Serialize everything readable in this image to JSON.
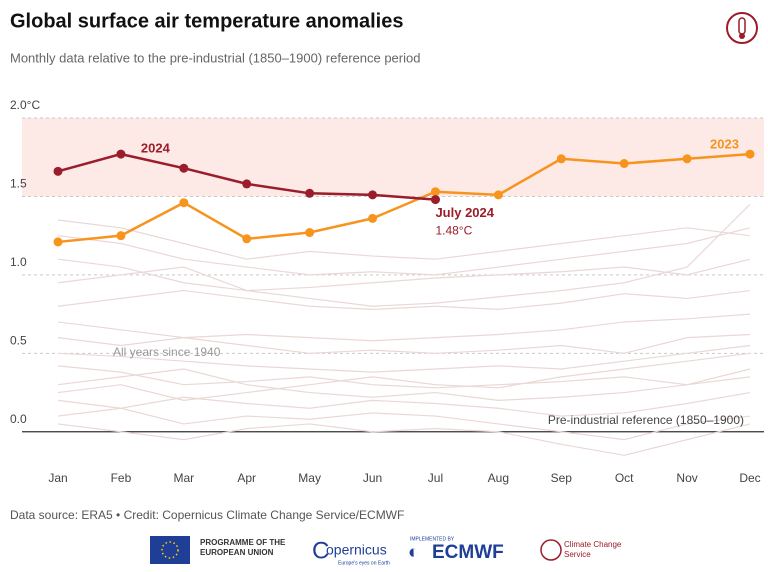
{
  "chart_data": {
    "type": "line",
    "title": "Global surface air temperature anomalies",
    "subtitle": "Monthly data relative to the pre-industrial (1850–1900) reference period",
    "categories": [
      "Jan",
      "Feb",
      "Mar",
      "Apr",
      "May",
      "Jun",
      "Jul",
      "Aug",
      "Sep",
      "Oct",
      "Nov",
      "Dec"
    ],
    "series": [
      {
        "name": "2023",
        "color": "#f7941d",
        "values": [
          1.21,
          1.25,
          1.46,
          1.23,
          1.27,
          1.36,
          1.53,
          1.51,
          1.74,
          1.71,
          1.74,
          1.77
        ]
      },
      {
        "name": "2024",
        "color": "#9b1c2a",
        "values": [
          1.66,
          1.77,
          1.68,
          1.58,
          1.52,
          1.51,
          1.48,
          null,
          null,
          null,
          null,
          null
        ]
      }
    ],
    "background_label": "All years since 1940",
    "background_color": "#e9d8d6",
    "background_lines": [
      [
        1.25,
        1.2,
        1.1,
        1.05,
        1.0,
        1.02,
        1.0,
        1.05,
        1.1,
        1.15,
        1.2,
        1.3
      ],
      [
        1.1,
        1.05,
        0.95,
        0.9,
        0.92,
        0.95,
        0.98,
        1.0,
        1.02,
        1.05,
        1.0,
        1.1
      ],
      [
        0.95,
        1.0,
        1.05,
        0.9,
        0.85,
        0.8,
        0.82,
        0.86,
        0.9,
        0.95,
        1.05,
        1.45
      ],
      [
        0.8,
        0.85,
        0.9,
        0.85,
        0.8,
        0.78,
        0.8,
        0.78,
        0.82,
        0.88,
        0.85,
        0.9
      ],
      [
        0.7,
        0.65,
        0.6,
        0.62,
        0.6,
        0.58,
        0.6,
        0.62,
        0.65,
        0.7,
        0.72,
        0.75
      ],
      [
        0.6,
        0.55,
        0.6,
        0.55,
        0.5,
        0.52,
        0.5,
        0.52,
        0.55,
        0.5,
        0.6,
        0.62
      ],
      [
        0.5,
        0.48,
        0.45,
        0.42,
        0.4,
        0.38,
        0.4,
        0.42,
        0.4,
        0.45,
        0.5,
        0.55
      ],
      [
        0.42,
        0.38,
        0.3,
        0.32,
        0.35,
        0.3,
        0.28,
        0.3,
        0.32,
        0.35,
        0.3,
        0.4
      ],
      [
        0.3,
        0.35,
        0.4,
        0.3,
        0.25,
        0.22,
        0.25,
        0.2,
        0.22,
        0.25,
        0.3,
        0.35
      ],
      [
        0.2,
        0.15,
        0.22,
        0.18,
        0.15,
        0.2,
        0.18,
        0.15,
        0.1,
        0.12,
        0.18,
        0.25
      ],
      [
        0.1,
        0.15,
        0.05,
        0.1,
        0.08,
        0.12,
        0.1,
        0.05,
        0.0,
        -0.05,
        0.05,
        0.1
      ],
      [
        0.05,
        0.0,
        -0.05,
        0.02,
        0.05,
        0.0,
        0.02,
        0.0,
        -0.08,
        -0.15,
        -0.05,
        0.05
      ],
      [
        0.25,
        0.3,
        0.2,
        0.25,
        0.3,
        0.35,
        0.3,
        0.28,
        0.35,
        0.4,
        0.45,
        0.5
      ],
      [
        1.35,
        1.3,
        1.2,
        1.1,
        1.15,
        1.12,
        1.1,
        1.15,
        1.2,
        1.25,
        1.3,
        1.25
      ]
    ],
    "band": [
      1.5,
      2.0
    ],
    "band_color": "#fde9e6",
    "ylim": [
      -0.18,
      2.0
    ],
    "yticks": [
      {
        "value": 0,
        "label": "0.0"
      },
      0.5,
      {
        "value": 1,
        "label": "1.0"
      },
      1.5,
      {
        "value": 2,
        "label": "2.0°C"
      }
    ],
    "reference_label": "Pre-industrial reference (1850–1900)",
    "annotations": [
      "July 2024",
      "1.48°C"
    ],
    "source": "Data source: ERA5 • Credit: Copernicus Climate Change Service/ECMWF"
  },
  "logos": {
    "eu": "PROGRAMME OF THE EUROPEAN UNION",
    "copernicus": "opernicus",
    "copernicus_tag": "Europe's eyes on Earth",
    "implemented": "IMPLEMENTED BY",
    "ecmwf": "ECMWF",
    "c3s": "Climate Change Service"
  }
}
